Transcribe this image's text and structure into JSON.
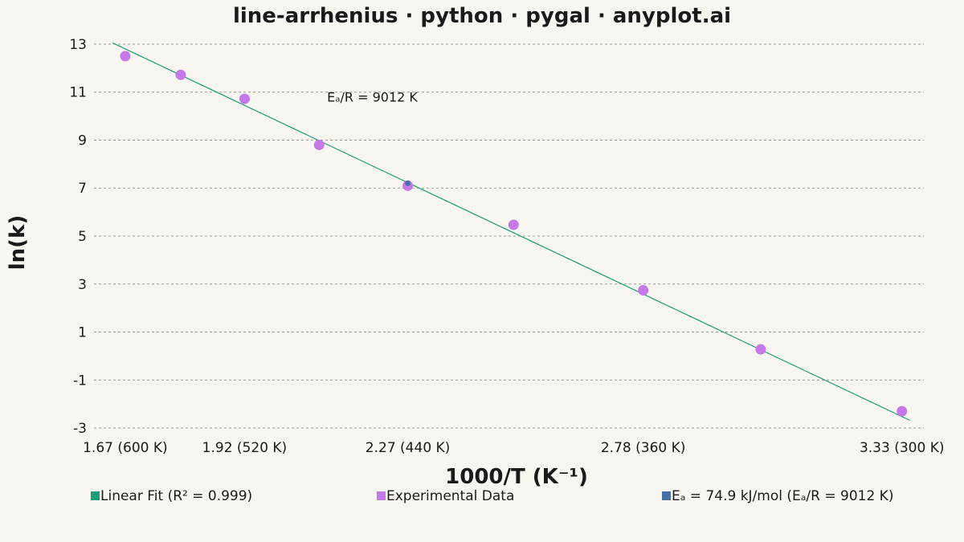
{
  "chart_data": {
    "type": "scatter",
    "title": "line-arrhenius · python · pygal · anyplot.ai",
    "xlabel": "1000/T (K⁻¹)",
    "ylabel": "ln(k)",
    "xlim": [
      1.6,
      3.38
    ],
    "ylim": [
      -3.5,
      13.5
    ],
    "grid": true,
    "legend_position": "bottom",
    "x_ticks": [
      {
        "value": 1.667,
        "label": "1.67 (600 K)"
      },
      {
        "value": 1.923,
        "label": "1.92 (520 K)"
      },
      {
        "value": 2.273,
        "label": "2.27 (440 K)"
      },
      {
        "value": 2.778,
        "label": "2.78 (360 K)"
      },
      {
        "value": 3.333,
        "label": "3.33 (300 K)"
      }
    ],
    "y_ticks": [
      13,
      11,
      9,
      7,
      5,
      3,
      1,
      -1,
      -3
    ],
    "y_tick_labels": [
      "13",
      "11",
      "9",
      "7",
      "5",
      "3",
      "1",
      "-1",
      "-3"
    ],
    "series": [
      {
        "name": "Linear Fit (R² = 0.999)",
        "kind": "line",
        "color": "#1b9e77",
        "x": [
          1.64,
          3.35
        ],
        "y": [
          13.05,
          -2.68
        ]
      },
      {
        "name": "Experimental Data",
        "kind": "scatter",
        "color": "#c678e8",
        "x": [
          1.667,
          1.786,
          1.923,
          2.083,
          2.273,
          2.5,
          2.778,
          3.03,
          3.333
        ],
        "y": [
          12.5,
          11.72,
          10.72,
          8.8,
          7.1,
          5.47,
          2.74,
          0.28,
          -2.3
        ]
      },
      {
        "name": "Eₐ = 74.9 kJ/mol (Eₐ/R = 9012 K)",
        "kind": "marker",
        "color": "#4a6fa5",
        "x": [
          2.273
        ],
        "y": [
          7.2
        ]
      }
    ],
    "annotations": [
      {
        "text": "Eₐ/R = 9012 K",
        "x": 2.1,
        "y": 10.6
      }
    ]
  }
}
